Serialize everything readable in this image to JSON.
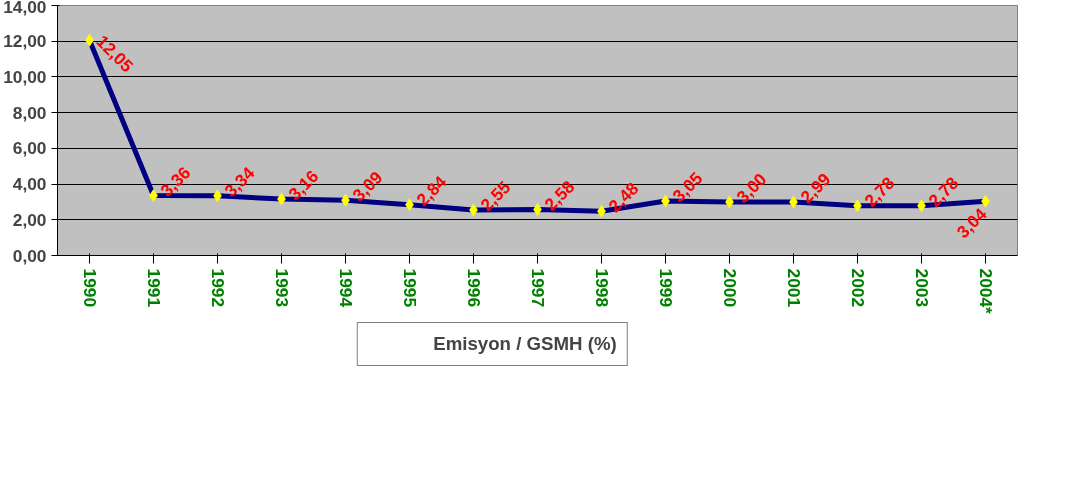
{
  "chart_data": {
    "type": "line",
    "categories": [
      "1990",
      "1991",
      "1992",
      "1993",
      "1994",
      "1995",
      "1996",
      "1997",
      "1998",
      "1999",
      "2000",
      "2001",
      "2002",
      "2003",
      "2004*"
    ],
    "series": [
      {
        "name": "Emisyon / GSMH (%)",
        "color": "#000080",
        "colors": [
          "#ffff00",
          "#ffff00",
          "#ffff00",
          "#ffff00",
          "#ffff00",
          "#ffff00",
          "#ffff00",
          "#ffff00",
          "#ffff00",
          "#ffff00",
          "#ffff00",
          "#ffff00",
          "#ffff00",
          "#ffff00",
          "#ffff00"
        ],
        "values": [
          12.05,
          3.36,
          3.34,
          3.16,
          3.09,
          2.84,
          2.55,
          2.58,
          2.48,
          3.05,
          3.0,
          2.99,
          2.78,
          2.78,
          3.04
        ],
        "value_labels": [
          "12,05",
          "3,36",
          "3,34",
          "3,16",
          "3,09",
          "2,84",
          "2,55",
          "2,58",
          "2,48",
          "3,05",
          "3,00",
          "2,99",
          "2,78",
          "2,78",
          "3,04"
        ]
      }
    ],
    "ylim": [
      0,
      14
    ],
    "yticks": [
      {
        "value": 0,
        "label": "0,00"
      },
      {
        "value": 2,
        "label": "2,00"
      },
      {
        "value": 4,
        "label": "4,00"
      },
      {
        "value": 6,
        "label": "6,00"
      },
      {
        "value": 8,
        "label": "8,00"
      },
      {
        "value": 10,
        "label": "10,00"
      },
      {
        "value": 12,
        "label": "12,00"
      },
      {
        "value": 14,
        "label": "14,00"
      }
    ],
    "grid": "y",
    "legend": "bottom",
    "marker": "diamond",
    "line_style": "solid"
  }
}
